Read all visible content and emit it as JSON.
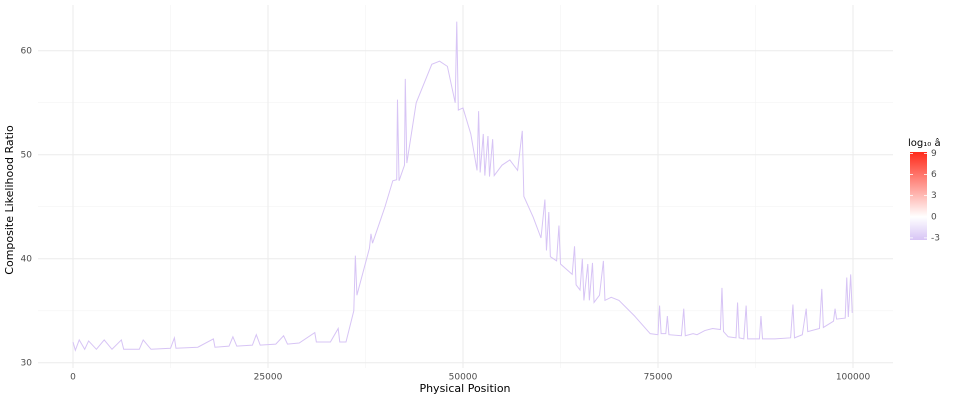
{
  "chart_data": {
    "type": "line",
    "x_label": "Physical Position",
    "y_label": "Composite Likelihood Ratio",
    "xlim": [
      -4487,
      105128
    ],
    "ylim": [
      29.5,
      64.4
    ],
    "xticks": [
      0,
      25000,
      50000,
      75000,
      100000
    ],
    "yticks": [
      30,
      40,
      50,
      60
    ],
    "grid": true,
    "color": "#d7c4f5",
    "x": [
      0,
      300,
      800,
      1500,
      2000,
      3000,
      4000,
      5000,
      6200,
      6500,
      8500,
      9000,
      10000,
      12500,
      13000,
      13200,
      16000,
      18000,
      18200,
      20000,
      20500,
      21000,
      23000,
      23500,
      24000,
      26000,
      27000,
      27500,
      29000,
      31000,
      31200,
      33000,
      34000,
      34200,
      35000,
      36000,
      36200,
      36400,
      38000,
      38200,
      38400,
      40000,
      41000,
      41500,
      41600,
      41800,
      42500,
      42600,
      42800,
      44000,
      46000,
      47000,
      48000,
      49000,
      49200,
      49400,
      50000,
      51000,
      51800,
      52000,
      52200,
      52600,
      52800,
      53200,
      53400,
      53800,
      54000,
      55000,
      56000,
      57000,
      57600,
      57800,
      59000,
      60000,
      60500,
      60700,
      61000,
      61200,
      62000,
      62300,
      62500,
      64000,
      64300,
      64500,
      65000,
      65300,
      65500,
      66000,
      66200,
      66600,
      66800,
      67500,
      68000,
      68200,
      69000,
      70000,
      72000,
      74000,
      75000,
      75200,
      75400,
      76000,
      76200,
      76400,
      78000,
      78300,
      78500,
      79500,
      80000,
      81000,
      82000,
      83000,
      83200,
      83400,
      84000,
      85000,
      85200,
      85400,
      86000,
      86300,
      86500,
      88000,
      88200,
      88400,
      90000,
      92000,
      92300,
      92500,
      93500,
      94000,
      94200,
      95700,
      96000,
      96200,
      97500,
      97700,
      97900,
      99000,
      99200,
      99400,
      99700,
      99900
    ],
    "y": [
      32,
      31.2,
      32.2,
      31.3,
      32.1,
      31.3,
      32.2,
      31.3,
      32.2,
      31.3,
      31.3,
      32.2,
      31.3,
      31.4,
      32.4,
      31.4,
      31.5,
      32.3,
      31.5,
      31.6,
      32.5,
      31.6,
      31.7,
      32.7,
      31.7,
      31.8,
      32.6,
      31.8,
      31.9,
      32.9,
      32,
      32,
      33.3,
      32,
      32,
      35,
      40.3,
      36.5,
      41,
      42.4,
      41.5,
      45,
      47.5,
      47.6,
      55.3,
      47.5,
      49,
      57.3,
      49.2,
      55,
      58.7,
      59,
      58.5,
      55,
      62.8,
      54.3,
      54.5,
      52,
      48.5,
      54.2,
      48.3,
      52,
      48,
      51.8,
      47.9,
      51.5,
      48,
      49,
      49.5,
      48.5,
      52.3,
      46,
      44,
      42,
      45.7,
      40.8,
      44.5,
      40.2,
      39.8,
      43.2,
      39.5,
      38.5,
      41.2,
      37.5,
      37,
      40,
      36,
      39.5,
      36,
      39.6,
      35.8,
      36.5,
      39.8,
      36,
      36.3,
      36,
      34.5,
      32.8,
      32.7,
      35.5,
      32.8,
      32.8,
      34.5,
      32.7,
      32.6,
      35.2,
      32.6,
      32.8,
      32.7,
      33.1,
      33.3,
      33.2,
      37.2,
      33,
      32.5,
      32.4,
      35.8,
      32.4,
      32.3,
      35.5,
      32.3,
      32.3,
      34.5,
      32.3,
      32.3,
      32.4,
      35.6,
      32.4,
      32.7,
      35.2,
      33,
      33.3,
      37.1,
      33.4,
      34,
      35.2,
      34.2,
      34.3,
      38.2,
      34.4,
      38.5,
      34.8
    ],
    "colorbar": {
      "title": "log₁₀ â",
      "lim": [
        -3.3,
        9.2
      ],
      "ticks": [
        9,
        6,
        3,
        0,
        -3
      ],
      "colors": [
        "#d7c4f5",
        "#ffffff",
        "#ff2a1a"
      ]
    }
  }
}
